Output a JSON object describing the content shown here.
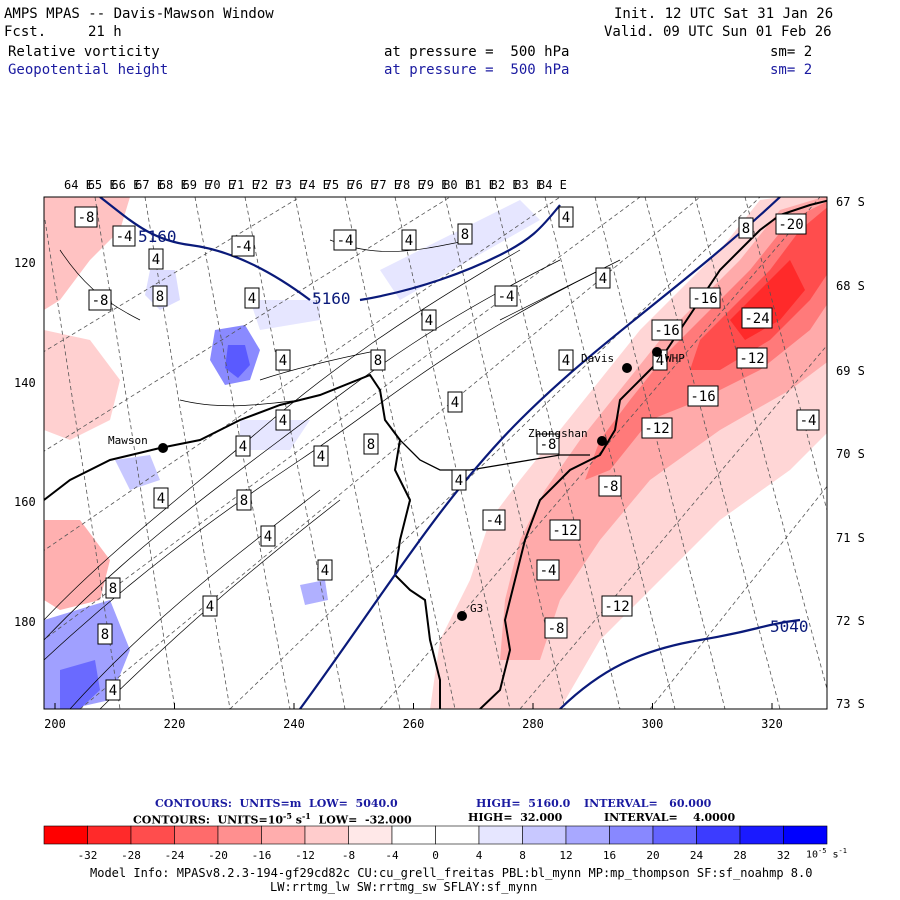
{
  "header": {
    "title": "AMPS MPAS -- Davis-Mawson Window",
    "fcst_label": "Fcst.",
    "fcst_value": "21 h",
    "field1_name": "Relative vorticity",
    "field1_level": "at pressure =  500 hPa",
    "field1_sm": "sm= 2",
    "field2_name": "Geopotential height",
    "field2_level": "at pressure =  500 hPa",
    "field2_sm": "sm= 2",
    "init": "Init. 12 UTC Sat 31 Jan 26",
    "valid": "Valid. 09 UTC Sun 01 Feb 26"
  },
  "axes": {
    "top_ticks": [
      "64 E",
      "65 E",
      "66 E",
      "67 E",
      "68 E",
      "69 E",
      "70 E",
      "71 E",
      "72 E",
      "73 E",
      "74 E",
      "75 E",
      "76 E",
      "77 E",
      "78 E",
      "79 E",
      "80 E",
      "81 E",
      "82 E",
      "83 E",
      "84 E"
    ],
    "right_ticks": [
      "67 S",
      "68 S",
      "69 S",
      "70 S",
      "71 S",
      "72 S",
      "73 S"
    ],
    "left_ticks": [
      "120",
      "140",
      "160",
      "180"
    ],
    "bottom_ticks": [
      "200",
      "220",
      "240",
      "260",
      "280",
      "300",
      "320"
    ]
  },
  "stations": [
    {
      "name": "Mawson"
    },
    {
      "name": "Davis"
    },
    {
      "name": "WHP"
    },
    {
      "name": "Zhongshan"
    },
    {
      "name": "G3"
    }
  ],
  "height_labels": [
    "5160",
    "5160",
    "5040"
  ],
  "vort_labels": [
    "-8",
    "-4",
    "-4",
    "-4",
    "4",
    "8",
    "4",
    "4",
    "-8",
    "8",
    "4",
    "-4",
    "4",
    "4",
    "8",
    "4",
    "4",
    "4",
    "4",
    "4",
    "8",
    "4",
    "4",
    "4",
    "8",
    "4",
    "4",
    "8",
    "-4",
    "-12",
    "-8",
    "-8",
    "-4",
    "-12",
    "-16",
    "-20",
    "-16",
    "-24",
    "-12",
    "-16",
    "-12",
    "-8",
    "-4",
    "4",
    "8",
    "4",
    "8",
    "4"
  ],
  "legend": {
    "line1_a": "CONTOURS:  UNITS=m  LOW=  5040.0",
    "line1_b": "HIGH=  5160.0",
    "line1_c": "INTERVAL=   60.000",
    "line2_a": "CONTOURS:  UNITS=10",
    "line2_exp": "-5",
    "line2_b": " s",
    "line2_exp2": "-1",
    "line2_c": "  LOW=  -32.000",
    "line2_d": "HIGH=  32.000",
    "line2_e": "INTERVAL=    4.0000",
    "colors": [
      "#ff0000",
      "#ff2a2a",
      "#ff4d4d",
      "#ff6b6b",
      "#ff8f8f",
      "#ffadad",
      "#ffcccc",
      "#ffe8e8",
      "#ffffff",
      "#ffffff",
      "#e6e6ff",
      "#c8c8ff",
      "#a8a8ff",
      "#8888ff",
      "#6464ff",
      "#3c3cff",
      "#1a1aff",
      "#0000ff"
    ],
    "tick_labels": [
      "-32",
      "-28",
      "-24",
      "-20",
      "-16",
      "-12",
      "-8",
      "-4",
      "0",
      "4",
      "8",
      "12",
      "16",
      "20",
      "24",
      "28",
      "32"
    ],
    "unit": "10",
    "unit_exp": "-5",
    "unit_s": " s",
    "unit_exp2": "-1"
  },
  "footer": {
    "line1": "Model Info: MPASv8.2.3-194-gf29cd82c CU:cu_grell_freitas PBL:bl_mynn MP:mp_thompson SF:sf_noahmp 8.0",
    "line2": "LW:rrtmg_lw SW:rrtmg_sw SFLAY:sf_mynn"
  }
}
